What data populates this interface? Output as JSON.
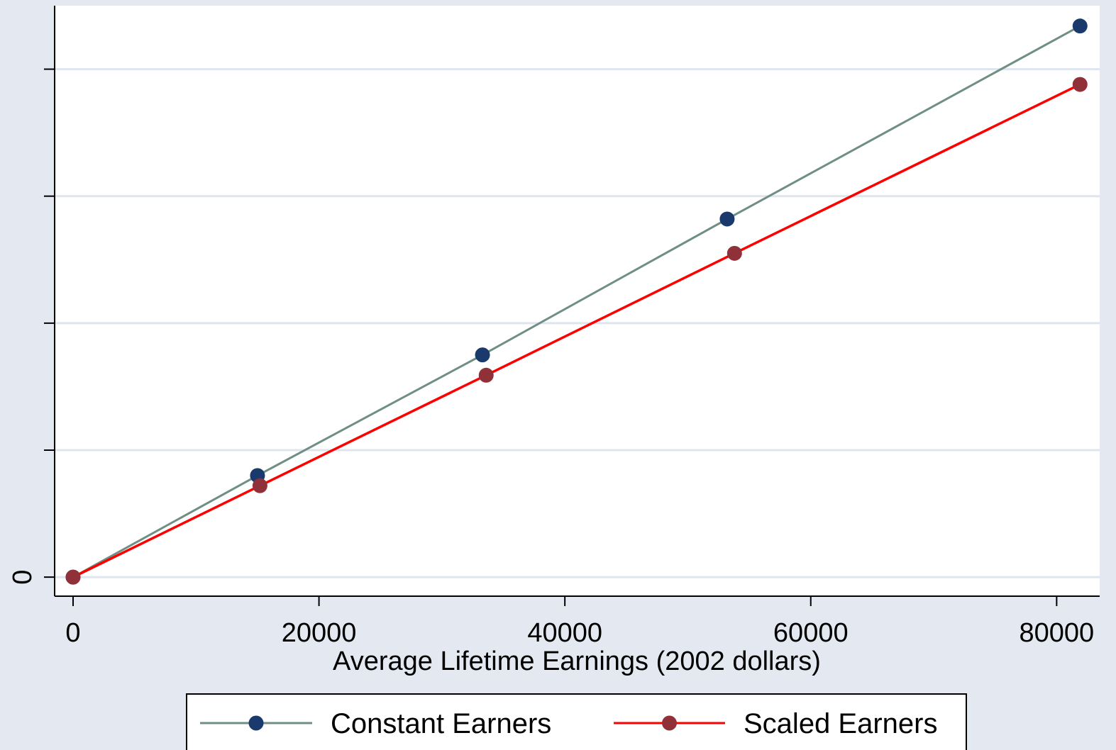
{
  "chart_data": {
    "type": "line",
    "title": "",
    "xlabel": "Average Lifetime Earnings (2002 dollars)",
    "ylabel": "",
    "xlim": [
      -1500,
      83500
    ],
    "ylim": [
      -1.5,
      45
    ],
    "x_ticks": [
      0,
      20000,
      40000,
      60000,
      80000
    ],
    "x_tick_labels": [
      "0",
      "20000",
      "40000",
      "60000",
      "80000"
    ],
    "y_ticks": [
      0,
      10,
      20,
      30,
      40
    ],
    "y_tick_labels": [
      "0",
      "",
      "",
      "",
      ""
    ],
    "grid": true,
    "legend_position": "bottom",
    "series": [
      {
        "name": "Constant Earners",
        "line_color": "#6f8f84",
        "marker_color": "#1a3a6e",
        "x": [
          0,
          15000,
          33300,
          53200,
          81900
        ],
        "y": [
          0,
          8,
          17.5,
          28.2,
          43.4
        ]
      },
      {
        "name": "Scaled Earners",
        "line_color": "#ff0000",
        "marker_color": "#903038",
        "x": [
          0,
          15200,
          33600,
          53800,
          81900
        ],
        "y": [
          0,
          7.2,
          15.9,
          25.5,
          38.8
        ]
      }
    ]
  }
}
